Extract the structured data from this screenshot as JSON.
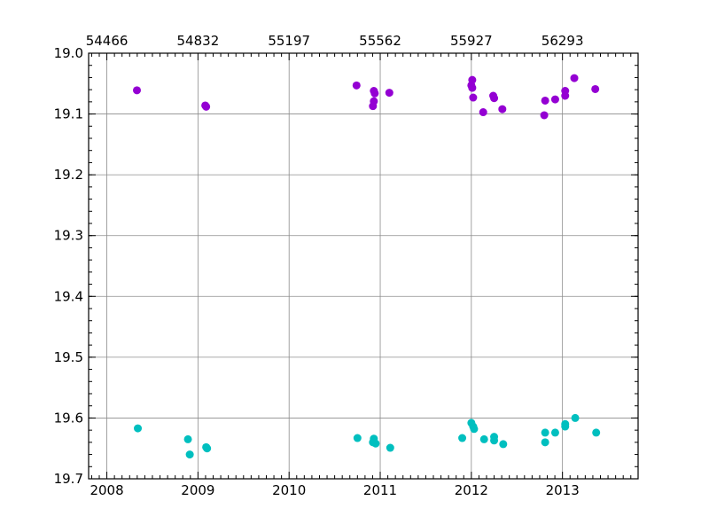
{
  "chart_data": {
    "type": "scatter",
    "title": "",
    "xlabel": "",
    "ylabel": "",
    "grid": true,
    "x_axis_bottom": {
      "unit": "year",
      "range": [
        2007.8,
        2013.83
      ],
      "tick_values": [
        2008,
        2009,
        2010,
        2011,
        2012,
        2013
      ],
      "tick_labels": [
        "2008",
        "2009",
        "2010",
        "2011",
        "2012",
        "2013"
      ],
      "minor_ticks": "monthly"
    },
    "x_axis_top": {
      "unit": "MJD",
      "tick_labels": [
        "54466",
        "54832",
        "55197",
        "55562",
        "55927",
        "56293"
      ],
      "aligned_with_bottom_ticks": [
        2008,
        2009,
        2010,
        2011,
        2012,
        2013
      ]
    },
    "y_axis": {
      "inverted": true,
      "range": [
        19.0,
        19.7
      ],
      "tick_values": [
        19.0,
        19.1,
        19.2,
        19.3,
        19.4,
        19.5,
        19.6,
        19.7
      ],
      "tick_labels": [
        "19.0",
        "19.1",
        "19.2",
        "19.3",
        "19.4",
        "19.5",
        "19.6",
        "19.7"
      ],
      "minor_step": 0.02
    },
    "series": [
      {
        "color": "#9400d3",
        "points": [
          {
            "x": 2008.33,
            "y": 19.061
          },
          {
            "x": 2009.08,
            "y": 19.086
          },
          {
            "x": 2009.09,
            "y": 19.088
          },
          {
            "x": 2010.74,
            "y": 19.053
          },
          {
            "x": 2010.93,
            "y": 19.062
          },
          {
            "x": 2010.94,
            "y": 19.066
          },
          {
            "x": 2010.93,
            "y": 19.079
          },
          {
            "x": 2010.92,
            "y": 19.087
          },
          {
            "x": 2011.1,
            "y": 19.065
          },
          {
            "x": 2012.01,
            "y": 19.044
          },
          {
            "x": 2012.0,
            "y": 19.053
          },
          {
            "x": 2012.01,
            "y": 19.057
          },
          {
            "x": 2012.02,
            "y": 19.073
          },
          {
            "x": 2012.13,
            "y": 19.097
          },
          {
            "x": 2012.24,
            "y": 19.07
          },
          {
            "x": 2012.25,
            "y": 19.074
          },
          {
            "x": 2012.34,
            "y": 19.092
          },
          {
            "x": 2012.81,
            "y": 19.078
          },
          {
            "x": 2012.8,
            "y": 19.102
          },
          {
            "x": 2012.92,
            "y": 19.076
          },
          {
            "x": 2013.03,
            "y": 19.062
          },
          {
            "x": 2013.03,
            "y": 19.07
          },
          {
            "x": 2013.13,
            "y": 19.041
          },
          {
            "x": 2013.36,
            "y": 19.059
          }
        ]
      },
      {
        "color": "#00bfbf",
        "points": [
          {
            "x": 2008.34,
            "y": 19.617
          },
          {
            "x": 2008.89,
            "y": 19.635
          },
          {
            "x": 2008.91,
            "y": 19.66
          },
          {
            "x": 2009.09,
            "y": 19.648
          },
          {
            "x": 2009.1,
            "y": 19.65
          },
          {
            "x": 2010.75,
            "y": 19.633
          },
          {
            "x": 2010.93,
            "y": 19.634
          },
          {
            "x": 2010.92,
            "y": 19.64
          },
          {
            "x": 2010.95,
            "y": 19.642
          },
          {
            "x": 2011.11,
            "y": 19.649
          },
          {
            "x": 2011.9,
            "y": 19.633
          },
          {
            "x": 2012.0,
            "y": 19.608
          },
          {
            "x": 2012.02,
            "y": 19.614
          },
          {
            "x": 2012.03,
            "y": 19.618
          },
          {
            "x": 2012.14,
            "y": 19.635
          },
          {
            "x": 2012.25,
            "y": 19.631
          },
          {
            "x": 2012.25,
            "y": 19.637
          },
          {
            "x": 2012.35,
            "y": 19.643
          },
          {
            "x": 2012.81,
            "y": 19.624
          },
          {
            "x": 2012.81,
            "y": 19.64
          },
          {
            "x": 2012.92,
            "y": 19.624
          },
          {
            "x": 2013.03,
            "y": 19.61
          },
          {
            "x": 2013.03,
            "y": 19.614
          },
          {
            "x": 2013.14,
            "y": 19.6
          },
          {
            "x": 2013.37,
            "y": 19.624
          }
        ]
      }
    ]
  }
}
